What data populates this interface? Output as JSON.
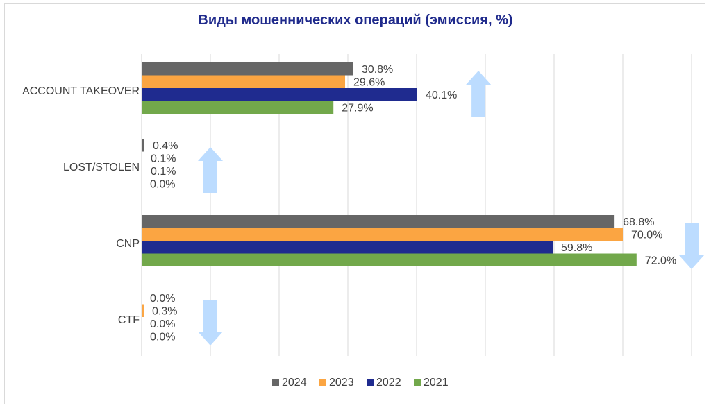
{
  "chart_data": {
    "type": "bar",
    "orientation": "horizontal",
    "title": "Виды мошеннических операций (эмиссия, %)",
    "categories": [
      "ACCOUNT TAKEOVER",
      "LOST/STOLEN",
      "CNP",
      "CTF"
    ],
    "series": [
      {
        "name": "2024",
        "color": "#666666",
        "values": [
          30.8,
          0.4,
          68.8,
          0.0
        ],
        "labels": [
          "30.8%",
          "0.4%",
          "68.8%",
          "0.0%"
        ]
      },
      {
        "name": "2023",
        "color": "#fba542",
        "values": [
          29.6,
          0.1,
          70.0,
          0.3
        ],
        "labels": [
          "29.6%",
          "0.1%",
          "70.0%",
          "0.3%"
        ]
      },
      {
        "name": "2022",
        "color": "#1f2b8f",
        "values": [
          40.1,
          0.1,
          59.8,
          0.0
        ],
        "labels": [
          "40.1%",
          "0.1%",
          "59.8%",
          "0.0%"
        ]
      },
      {
        "name": "2021",
        "color": "#72a84b",
        "values": [
          27.9,
          0.0,
          72.0,
          0.0
        ],
        "labels": [
          "27.9%",
          "0.0%",
          "72.0%",
          "0.0%"
        ]
      }
    ],
    "xlim": [
      0,
      80
    ],
    "grid": true,
    "legend_position": "bottom",
    "trend_arrows": [
      {
        "category": "ACCOUNT TAKEOVER",
        "direction": "up",
        "color": "#bcdcff",
        "x": 49
      },
      {
        "category": "LOST/STOLEN",
        "direction": "up",
        "color": "#bcdcff",
        "x": 10
      },
      {
        "category": "CNP",
        "direction": "down",
        "color": "#bcdcff",
        "x": 80
      },
      {
        "category": "CTF",
        "direction": "down",
        "color": "#bcdcff",
        "x": 10
      }
    ]
  }
}
